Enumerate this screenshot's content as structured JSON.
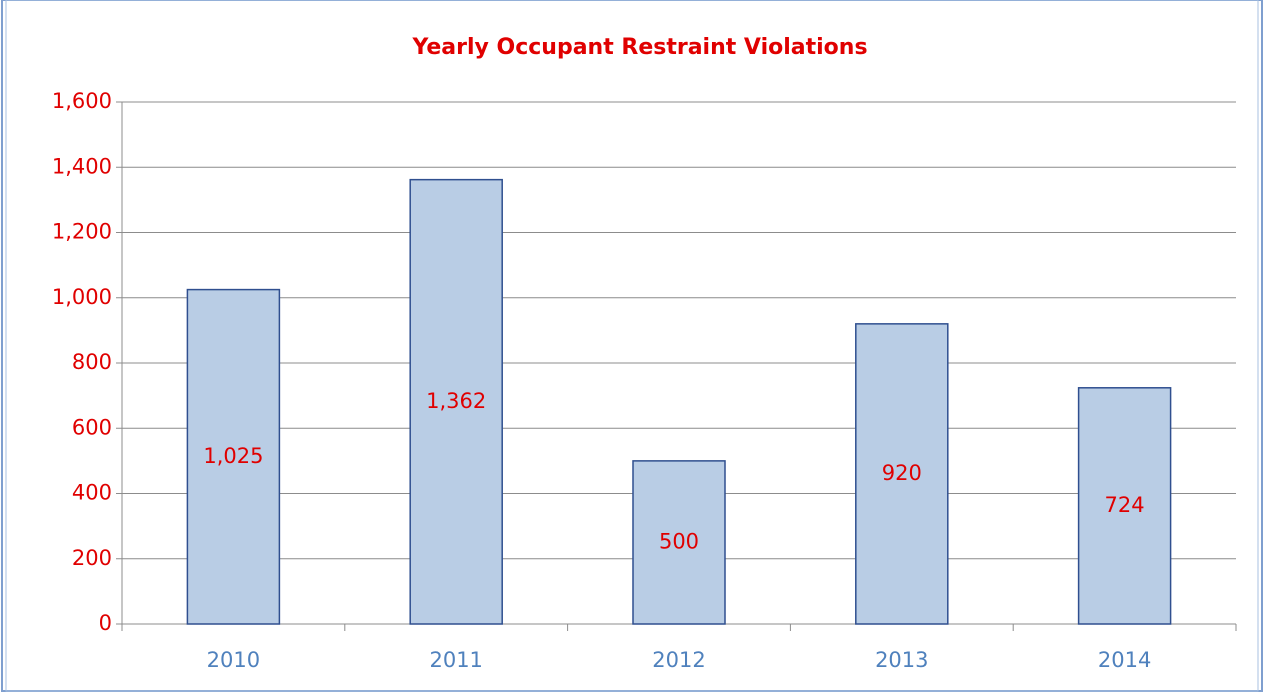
{
  "chart_data": {
    "type": "bar",
    "title": "Yearly Occupant Restraint Violations",
    "categories": [
      "2010",
      "2011",
      "2012",
      "2013",
      "2014"
    ],
    "values": [
      1025,
      1362,
      500,
      920,
      724
    ],
    "value_labels": [
      "1,025",
      "1,362",
      "500",
      "920",
      "724"
    ],
    "color": "#b9cde5",
    "ylim": [
      0,
      1600
    ],
    "yticks": [
      0,
      200,
      400,
      600,
      800,
      {
        "value": 1000,
        "label": "1,000"
      },
      {
        "value": 1200,
        "label": "1,200"
      },
      {
        "value": 1400,
        "label": "1,400"
      },
      {
        "value": 1600,
        "label": "1,600"
      }
    ],
    "grid": true
  }
}
